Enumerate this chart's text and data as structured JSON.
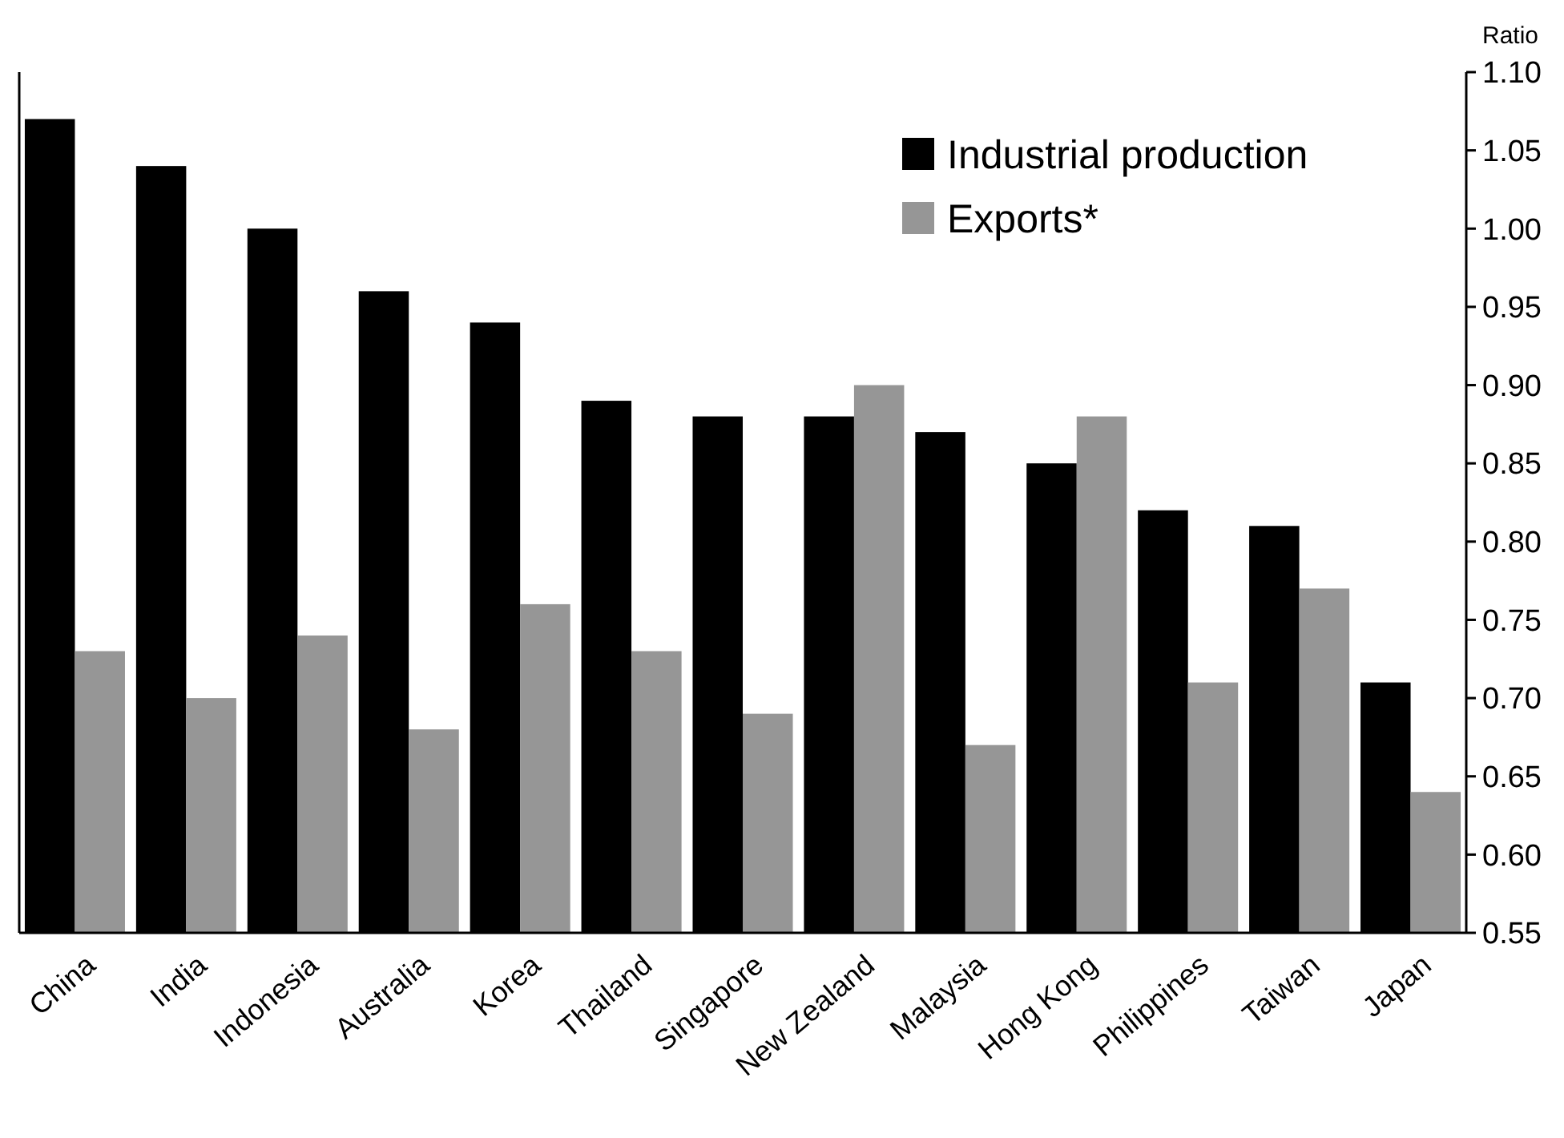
{
  "chart_data": {
    "type": "bar",
    "ylabel": "Ratio",
    "categories": [
      "China",
      "India",
      "Indonesia",
      "Australia",
      "Korea",
      "Thailand",
      "Singapore",
      "New Zealand",
      "Malaysia",
      "Hong Kong",
      "Philippines",
      "Taiwan",
      "Japan"
    ],
    "series": [
      {
        "name": "Industrial production",
        "color": "#000000",
        "values": [
          1.07,
          1.04,
          1.0,
          0.96,
          0.94,
          0.89,
          0.88,
          0.88,
          0.87,
          0.85,
          0.82,
          0.81,
          0.71
        ]
      },
      {
        "name": "Exports*",
        "color": "#969696",
        "values": [
          0.73,
          0.7,
          0.74,
          0.68,
          0.76,
          0.73,
          0.69,
          0.9,
          0.67,
          0.88,
          0.71,
          0.77,
          0.64
        ]
      }
    ],
    "ylim": [
      0.55,
      1.1
    ],
    "yticks": [
      {
        "value": 0.55,
        "label": "0.55"
      },
      {
        "value": 0.6,
        "label": "0.60"
      },
      {
        "value": 0.65,
        "label": "0.65"
      },
      {
        "value": 0.7,
        "label": "0.70"
      },
      {
        "value": 0.75,
        "label": "0.75"
      },
      {
        "value": 0.8,
        "label": "0.80"
      },
      {
        "value": 0.85,
        "label": "0.85"
      },
      {
        "value": 0.9,
        "label": "0.90"
      },
      {
        "value": 0.95,
        "label": "0.95"
      },
      {
        "value": 1.0,
        "label": "1.00"
      },
      {
        "value": 1.05,
        "label": "1.05"
      },
      {
        "value": 1.1,
        "label": "1.10"
      }
    ],
    "grid": false,
    "legend": "top right"
  }
}
